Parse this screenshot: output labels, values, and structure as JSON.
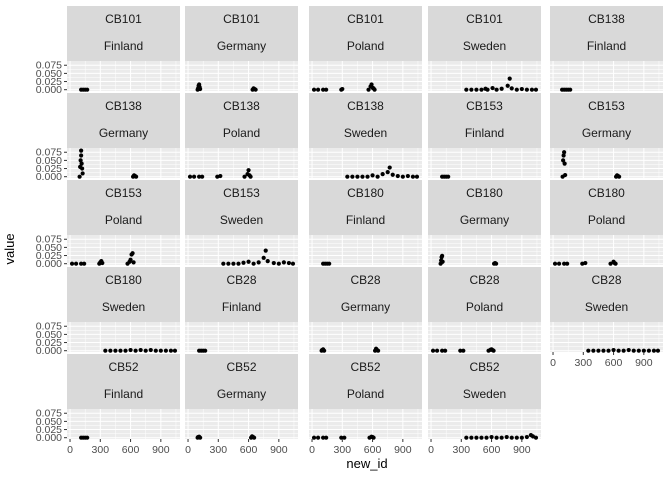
{
  "chart_data": {
    "type": "scatter",
    "facet": "wrap",
    "xlabel": "new_id",
    "ylabel": "value",
    "xlim": [
      -30,
      1090
    ],
    "ylim": [
      -0.004,
      0.088
    ],
    "x_ticks": [
      0,
      300,
      600,
      900
    ],
    "y_ticks": [
      0.0,
      0.025,
      0.05,
      0.075
    ],
    "x_tick_labels": [
      "0",
      "300",
      "600",
      "900"
    ],
    "y_tick_labels": [
      "0.000",
      "0.025",
      "0.050",
      "0.075"
    ],
    "grid": true,
    "colors": {
      "strip": "#d9d9d9",
      "panel": "#ebebeb",
      "grid": "#ffffff",
      "point": "#000000"
    },
    "panels": [
      {
        "code": "CB101",
        "country": "Finland",
        "points": [
          [
            110,
            0
          ],
          [
            130,
            0
          ],
          [
            150,
            0
          ],
          [
            170,
            0
          ]
        ]
      },
      {
        "code": "CB101",
        "country": "Germany",
        "points": [
          [
            95,
            0
          ],
          [
            100,
            0.004
          ],
          [
            105,
            0.012
          ],
          [
            110,
            0.016
          ],
          [
            115,
            0.008
          ],
          [
            120,
            0.002
          ],
          [
            640,
            0
          ],
          [
            650,
            0.004
          ],
          [
            660,
            0.002
          ],
          [
            670,
            0
          ]
        ]
      },
      {
        "code": "CB101",
        "country": "Poland",
        "points": [
          [
            20,
            0
          ],
          [
            60,
            0
          ],
          [
            110,
            0
          ],
          [
            140,
            0
          ],
          [
            290,
            0
          ],
          [
            300,
            0.002
          ],
          [
            560,
            0
          ],
          [
            580,
            0.01
          ],
          [
            590,
            0.016
          ],
          [
            600,
            0.006
          ],
          [
            610,
            0.004
          ],
          [
            620,
            0
          ]
        ]
      },
      {
        "code": "CB101",
        "country": "Sweden",
        "points": [
          [
            350,
            0
          ],
          [
            400,
            0
          ],
          [
            450,
            0
          ],
          [
            500,
            0
          ],
          [
            540,
            0.003
          ],
          [
            560,
            0
          ],
          [
            610,
            0.005
          ],
          [
            650,
            0
          ],
          [
            700,
            0.003
          ],
          [
            760,
            0.012
          ],
          [
            780,
            0.034
          ],
          [
            800,
            0.004
          ],
          [
            850,
            0
          ],
          [
            900,
            0.002
          ],
          [
            950,
            0
          ],
          [
            1000,
            0
          ],
          [
            1040,
            0
          ]
        ]
      },
      {
        "code": "CB138",
        "country": "Finland",
        "points": [
          [
            90,
            0
          ],
          [
            110,
            0
          ],
          [
            130,
            0
          ],
          [
            150,
            0
          ],
          [
            170,
            0
          ]
        ]
      },
      {
        "code": "CB138",
        "country": "Germany",
        "points": [
          [
            95,
            0
          ],
          [
            100,
            0.03
          ],
          [
            105,
            0.05
          ],
          [
            110,
            0.065
          ],
          [
            115,
            0.04
          ],
          [
            120,
            0.025
          ],
          [
            125,
            0.01
          ],
          [
            110,
            0.08
          ],
          [
            625,
            0
          ],
          [
            635,
            0.004
          ],
          [
            645,
            0.002
          ],
          [
            655,
            0
          ]
        ]
      },
      {
        "code": "CB138",
        "country": "Poland",
        "points": [
          [
            20,
            0
          ],
          [
            60,
            0
          ],
          [
            110,
            0
          ],
          [
            140,
            0
          ],
          [
            290,
            0
          ],
          [
            320,
            0.002
          ],
          [
            560,
            0
          ],
          [
            590,
            0.008
          ],
          [
            600,
            0.02
          ],
          [
            610,
            0.004
          ],
          [
            620,
            0
          ]
        ]
      },
      {
        "code": "CB138",
        "country": "Sweden",
        "points": [
          [
            350,
            0
          ],
          [
            400,
            0
          ],
          [
            450,
            0
          ],
          [
            500,
            0
          ],
          [
            550,
            0
          ],
          [
            600,
            0.004
          ],
          [
            650,
            0
          ],
          [
            700,
            0.008
          ],
          [
            750,
            0.014
          ],
          [
            770,
            0.028
          ],
          [
            800,
            0.006
          ],
          [
            850,
            0.002
          ],
          [
            900,
            0
          ],
          [
            950,
            0.002
          ],
          [
            1000,
            0
          ],
          [
            1040,
            0
          ]
        ]
      },
      {
        "code": "CB153",
        "country": "Finland",
        "points": [
          [
            110,
            0
          ],
          [
            130,
            0
          ],
          [
            150,
            0
          ],
          [
            170,
            0
          ]
        ]
      },
      {
        "code": "CB153",
        "country": "Germany",
        "points": [
          [
            95,
            0
          ],
          [
            100,
            0.05
          ],
          [
            105,
            0.065
          ],
          [
            110,
            0.075
          ],
          [
            115,
            0.04
          ],
          [
            120,
            0.005
          ],
          [
            625,
            0
          ],
          [
            635,
            0.004
          ],
          [
            645,
            0.002
          ],
          [
            655,
            0
          ]
        ]
      },
      {
        "code": "CB153",
        "country": "Poland",
        "points": [
          [
            20,
            0
          ],
          [
            60,
            0
          ],
          [
            110,
            0
          ],
          [
            140,
            0
          ],
          [
            290,
            0
          ],
          [
            300,
            0.004
          ],
          [
            310,
            0.008
          ],
          [
            320,
            0.002
          ],
          [
            570,
            0
          ],
          [
            590,
            0.006
          ],
          [
            600,
            0.012
          ],
          [
            610,
            0.028
          ],
          [
            620,
            0.032
          ],
          [
            630,
            0.004
          ]
        ]
      },
      {
        "code": "CB153",
        "country": "Sweden",
        "points": [
          [
            350,
            0
          ],
          [
            400,
            0
          ],
          [
            450,
            0
          ],
          [
            500,
            0
          ],
          [
            550,
            0.003
          ],
          [
            600,
            0.006
          ],
          [
            650,
            0
          ],
          [
            700,
            0.004
          ],
          [
            750,
            0.018
          ],
          [
            770,
            0.04
          ],
          [
            790,
            0.008
          ],
          [
            850,
            0.002
          ],
          [
            900,
            0
          ],
          [
            950,
            0.004
          ],
          [
            1000,
            0.002
          ],
          [
            1040,
            0
          ]
        ]
      },
      {
        "code": "CB180",
        "country": "Finland",
        "points": [
          [
            110,
            0
          ],
          [
            130,
            0
          ],
          [
            150,
            0
          ],
          [
            170,
            0
          ]
        ]
      },
      {
        "code": "CB180",
        "country": "Germany",
        "points": [
          [
            95,
            0
          ],
          [
            100,
            0.01
          ],
          [
            105,
            0.02
          ],
          [
            110,
            0.024
          ],
          [
            115,
            0.006
          ],
          [
            625,
            0
          ],
          [
            635,
            0.002
          ],
          [
            645,
            0
          ]
        ]
      },
      {
        "code": "CB180",
        "country": "Poland",
        "points": [
          [
            20,
            0
          ],
          [
            60,
            0
          ],
          [
            110,
            0
          ],
          [
            140,
            0
          ],
          [
            290,
            0
          ],
          [
            320,
            0.002
          ],
          [
            570,
            0
          ],
          [
            600,
            0.006
          ],
          [
            610,
            0.002
          ],
          [
            620,
            0
          ]
        ]
      },
      {
        "code": "CB180",
        "country": "Sweden",
        "points": [
          [
            350,
            0
          ],
          [
            400,
            0
          ],
          [
            450,
            0
          ],
          [
            500,
            0
          ],
          [
            550,
            0
          ],
          [
            600,
            0.002
          ],
          [
            650,
            0
          ],
          [
            700,
            0.002
          ],
          [
            750,
            0
          ],
          [
            800,
            0.002
          ],
          [
            850,
            0
          ],
          [
            900,
            0
          ],
          [
            950,
            0
          ],
          [
            1000,
            0
          ],
          [
            1040,
            0
          ]
        ]
      },
      {
        "code": "CB28",
        "country": "Finland",
        "points": [
          [
            110,
            0
          ],
          [
            130,
            0
          ],
          [
            150,
            0
          ],
          [
            170,
            0
          ]
        ]
      },
      {
        "code": "CB28",
        "country": "Germany",
        "points": [
          [
            95,
            0
          ],
          [
            100,
            0.002
          ],
          [
            110,
            0.004
          ],
          [
            120,
            0
          ],
          [
            625,
            0
          ],
          [
            635,
            0.006
          ],
          [
            645,
            0.002
          ],
          [
            655,
            0
          ]
        ]
      },
      {
        "code": "CB28",
        "country": "Poland",
        "points": [
          [
            20,
            0
          ],
          [
            60,
            0
          ],
          [
            110,
            0
          ],
          [
            140,
            0
          ],
          [
            290,
            0
          ],
          [
            320,
            0
          ],
          [
            570,
            0
          ],
          [
            590,
            0.003
          ],
          [
            600,
            0.004
          ],
          [
            610,
            0.002
          ],
          [
            620,
            0
          ]
        ]
      },
      {
        "code": "CB28",
        "country": "Sweden",
        "points": [
          [
            350,
            0
          ],
          [
            400,
            0
          ],
          [
            450,
            0
          ],
          [
            500,
            0
          ],
          [
            550,
            0
          ],
          [
            600,
            0.002
          ],
          [
            650,
            0
          ],
          [
            700,
            0
          ],
          [
            750,
            0.002
          ],
          [
            800,
            0
          ],
          [
            850,
            0
          ],
          [
            900,
            0
          ],
          [
            950,
            0
          ],
          [
            1000,
            0
          ],
          [
            1040,
            0
          ]
        ]
      },
      {
        "code": "CB52",
        "country": "Finland",
        "points": [
          [
            110,
            0
          ],
          [
            130,
            0
          ],
          [
            150,
            0
          ],
          [
            170,
            0
          ]
        ]
      },
      {
        "code": "CB52",
        "country": "Germany",
        "points": [
          [
            95,
            0
          ],
          [
            100,
            0.002
          ],
          [
            110,
            0.003
          ],
          [
            120,
            0
          ],
          [
            625,
            0
          ],
          [
            635,
            0.004
          ],
          [
            645,
            0.002
          ],
          [
            655,
            0
          ]
        ]
      },
      {
        "code": "CB52",
        "country": "Poland",
        "points": [
          [
            20,
            0
          ],
          [
            60,
            0
          ],
          [
            110,
            0
          ],
          [
            140,
            0
          ],
          [
            290,
            0
          ],
          [
            320,
            0
          ],
          [
            570,
            0
          ],
          [
            590,
            0.003
          ],
          [
            600,
            0.002
          ],
          [
            610,
            0
          ]
        ]
      },
      {
        "code": "CB52",
        "country": "Sweden",
        "points": [
          [
            350,
            0
          ],
          [
            400,
            0
          ],
          [
            450,
            0
          ],
          [
            500,
            0
          ],
          [
            550,
            0
          ],
          [
            600,
            0.002
          ],
          [
            650,
            0
          ],
          [
            700,
            0
          ],
          [
            750,
            0.002
          ],
          [
            800,
            0
          ],
          [
            850,
            0
          ],
          [
            900,
            0
          ],
          [
            950,
            0.002
          ],
          [
            990,
            0.008
          ],
          [
            1010,
            0.004
          ],
          [
            1040,
            0
          ]
        ]
      }
    ]
  }
}
